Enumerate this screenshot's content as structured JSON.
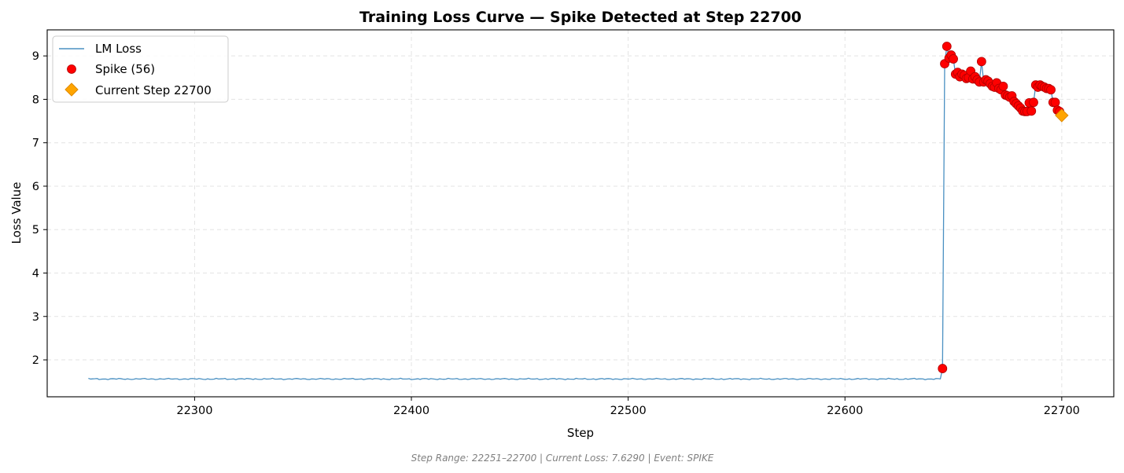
{
  "chart_data": {
    "type": "line",
    "title": "Training Loss Curve — Spike Detected at Step 22700",
    "xlabel": "Step",
    "ylabel": "Loss Value",
    "xlim": [
      22232,
      22724
    ],
    "ylim": [
      1.15,
      9.6
    ],
    "x_ticks": [
      22300,
      22400,
      22500,
      22600,
      22700
    ],
    "y_ticks": [
      2,
      3,
      4,
      5,
      6,
      7,
      8,
      9
    ],
    "grid": true,
    "legend_position": "upper-left",
    "legend": [
      {
        "label": "LM Loss",
        "marker": "line"
      },
      {
        "label": "Spike (56)",
        "marker": "circle"
      },
      {
        "label": "Current Step 22700",
        "marker": "diamond"
      }
    ],
    "footer": "Step Range: 22251–22700 | Current Loss: 7.6290 | Event: SPIKE",
    "colors": {
      "line": "#4a90c2",
      "spike": "#ff0000",
      "spike_edge": "#b00000",
      "current": "#ffa500",
      "current_edge": "#e08a00"
    },
    "series": [
      {
        "name": "LM Loss",
        "baseline": {
          "x_start": 22251,
          "x_end": 22644,
          "y": 1.56
        },
        "x": [
          22645,
          22646,
          22647,
          22648,
          22649,
          22650,
          22651,
          22652,
          22653,
          22654,
          22655,
          22656,
          22657,
          22658,
          22659,
          22660,
          22661,
          22662,
          22663,
          22664,
          22665,
          22666,
          22667,
          22668,
          22669,
          22670,
          22671,
          22672,
          22673,
          22674,
          22675,
          22676,
          22677,
          22678,
          22679,
          22680,
          22681,
          22682,
          22683,
          22684,
          22685,
          22686,
          22687,
          22688,
          22689,
          22690,
          22691,
          22692,
          22693,
          22694,
          22695,
          22696,
          22697,
          22698,
          22699,
          22700
        ],
        "y": [
          1.8,
          8.82,
          9.22,
          8.95,
          9.02,
          8.93,
          8.58,
          8.62,
          8.52,
          8.58,
          8.55,
          8.48,
          8.5,
          8.65,
          8.47,
          8.52,
          8.45,
          8.4,
          8.87,
          8.4,
          8.45,
          8.42,
          8.36,
          8.3,
          8.28,
          8.38,
          8.25,
          8.22,
          8.3,
          8.1,
          8.08,
          8.05,
          8.08,
          7.95,
          7.9,
          7.85,
          7.8,
          7.73,
          7.72,
          7.72,
          7.92,
          7.73,
          7.93,
          8.33,
          8.28,
          8.33,
          8.3,
          8.28,
          8.25,
          8.25,
          8.22,
          7.93,
          7.93,
          7.75,
          7.72,
          7.629
        ]
      },
      {
        "name": "Spike (56)",
        "x": [
          22645,
          22646,
          22647,
          22648,
          22649,
          22650,
          22651,
          22652,
          22653,
          22654,
          22655,
          22656,
          22657,
          22658,
          22659,
          22660,
          22661,
          22662,
          22663,
          22664,
          22665,
          22666,
          22667,
          22668,
          22669,
          22670,
          22671,
          22672,
          22673,
          22674,
          22675,
          22676,
          22677,
          22678,
          22679,
          22680,
          22681,
          22682,
          22683,
          22684,
          22685,
          22686,
          22687,
          22688,
          22689,
          22690,
          22691,
          22692,
          22693,
          22694,
          22695,
          22696,
          22697,
          22698,
          22699
        ],
        "y": [
          1.8,
          8.82,
          9.22,
          8.95,
          9.02,
          8.93,
          8.58,
          8.62,
          8.52,
          8.58,
          8.55,
          8.48,
          8.5,
          8.65,
          8.47,
          8.52,
          8.45,
          8.4,
          8.87,
          8.4,
          8.45,
          8.42,
          8.36,
          8.3,
          8.28,
          8.38,
          8.25,
          8.22,
          8.3,
          8.1,
          8.08,
          8.05,
          8.08,
          7.95,
          7.9,
          7.85,
          7.8,
          7.73,
          7.72,
          7.72,
          7.92,
          7.73,
          7.93,
          8.33,
          8.28,
          8.33,
          8.3,
          8.28,
          8.25,
          8.25,
          8.22,
          7.93,
          7.93,
          7.75,
          7.72
        ]
      },
      {
        "name": "Current Step 22700",
        "x": [
          22700
        ],
        "y": [
          7.629
        ]
      }
    ]
  }
}
